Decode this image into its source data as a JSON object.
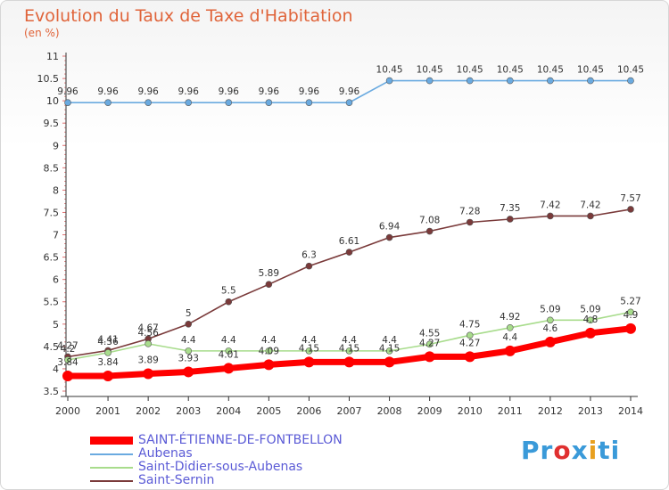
{
  "title": "Evolution du Taux de Taxe d'Habitation",
  "subtitle": "(en %)",
  "logo": "Proxiti",
  "colors": {
    "grid": "#e07070",
    "axis": "#333333",
    "logo": [
      "#3a9ad9",
      "#3a9ad9",
      "#e03030",
      "#3a9ad9",
      "#e8a020",
      "#3a9ad9",
      "#3a9ad9"
    ]
  },
  "chart_data": {
    "type": "line",
    "x": [
      "2000",
      "2001",
      "2002",
      "2003",
      "2004",
      "2005",
      "2006",
      "2007",
      "2008",
      "2009",
      "2010",
      "2011",
      "2012",
      "2013",
      "2014"
    ],
    "ylim": [
      3.5,
      11
    ],
    "yticks": [
      "3.5",
      "4",
      "4.5",
      "5",
      "5.5",
      "6",
      "6.5",
      "7",
      "7.5",
      "8",
      "8.5",
      "9",
      "9.5",
      "10",
      "10.5",
      "11"
    ],
    "grid": true,
    "legend_position": "bottom-left",
    "series": [
      {
        "name": "SAINT-ÉTIENNE-DE-FONTBELLON",
        "color": "#ff0000",
        "values": [
          3.84,
          3.84,
          3.89,
          3.93,
          4.01,
          4.09,
          4.15,
          4.15,
          4.15,
          4.27,
          4.27,
          4.4,
          4.6,
          4.8,
          4.9
        ],
        "labels": [
          "3.84",
          "3.84",
          "3.89",
          "3.93",
          "4.01",
          "4.09",
          "4.15",
          "4.15",
          "4.15",
          "4.27",
          "4.27",
          "4.4",
          "4.6",
          "4.8",
          "4.9"
        ]
      },
      {
        "name": "Aubenas",
        "color": "#6aaae0",
        "values": [
          9.96,
          9.96,
          9.96,
          9.96,
          9.96,
          9.96,
          9.96,
          9.96,
          10.45,
          10.45,
          10.45,
          10.45,
          10.45,
          10.45,
          10.45
        ],
        "labels": [
          "9.96",
          "9.96",
          "9.96",
          "9.96",
          "9.96",
          "9.96",
          "9.96",
          "9.96",
          "10.45",
          "10.45",
          "10.45",
          "10.45",
          "10.45",
          "10.45",
          "10.45"
        ]
      },
      {
        "name": "Saint-Didier-sous-Aubenas",
        "color": "#a8dc8c",
        "values": [
          4.2,
          4.36,
          4.56,
          4.4,
          4.4,
          4.4,
          4.4,
          4.4,
          4.4,
          4.55,
          4.75,
          4.92,
          5.09,
          5.09,
          5.27
        ],
        "labels": [
          "4.2",
          "4.36",
          "4.56",
          "4.4",
          "4.4",
          "4.4",
          "4.4",
          "4.4",
          "4.4",
          "4.55",
          "4.75",
          "4.92",
          "5.09",
          "5.09",
          "5.27"
        ]
      },
      {
        "name": "Saint-Sernin",
        "color": "#7a3a3a",
        "values": [
          4.27,
          4.41,
          4.67,
          5,
          5.5,
          5.89,
          6.3,
          6.61,
          6.94,
          7.08,
          7.28,
          7.35,
          7.42,
          7.42,
          7.57
        ],
        "labels": [
          "4.27",
          "4.41",
          "4.67",
          "5",
          "5.5",
          "5.89",
          "6.3",
          "6.61",
          "6.94",
          "7.08",
          "7.28",
          "7.35",
          "7.42",
          "7.42",
          "7.57"
        ]
      }
    ]
  }
}
